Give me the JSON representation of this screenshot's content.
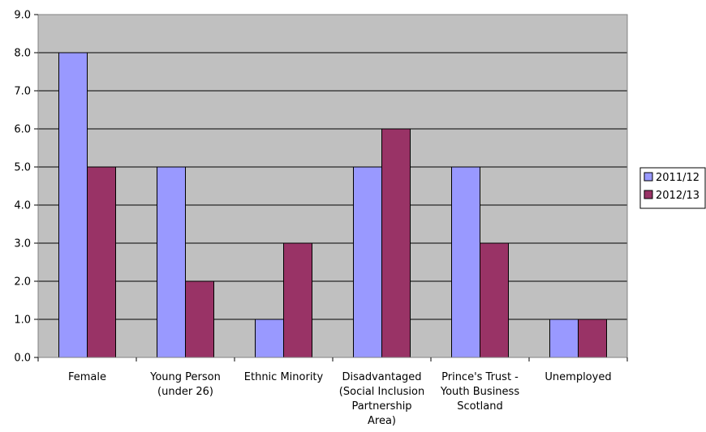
{
  "chart_data": {
    "type": "bar",
    "title": "",
    "xlabel": "",
    "ylabel": "",
    "ylim": [
      0,
      9
    ],
    "y_tick_step": 1,
    "y_tick_labels": [
      "0.0",
      "1.0",
      "2.0",
      "3.0",
      "4.0",
      "5.0",
      "6.0",
      "7.0",
      "8.0",
      "9.0"
    ],
    "grid": true,
    "legend_position": "right",
    "plot_background": "#c0c0c0",
    "categories": [
      [
        "Female"
      ],
      [
        "Young Person",
        "(under 26)"
      ],
      [
        "Ethnic Minority"
      ],
      [
        "Disadvantaged",
        "(Social Inclusion",
        "Partnership",
        "Area)"
      ],
      [
        "Prince's Trust -",
        "Youth Business",
        "Scotland"
      ],
      [
        "Unemployed"
      ]
    ],
    "series": [
      {
        "name": "2011/12",
        "color": "#9999ff",
        "values": [
          8,
          5,
          1,
          5,
          5,
          1
        ]
      },
      {
        "name": "2012/13",
        "color": "#993366",
        "values": [
          5,
          2,
          3,
          6,
          3,
          1
        ]
      }
    ]
  }
}
